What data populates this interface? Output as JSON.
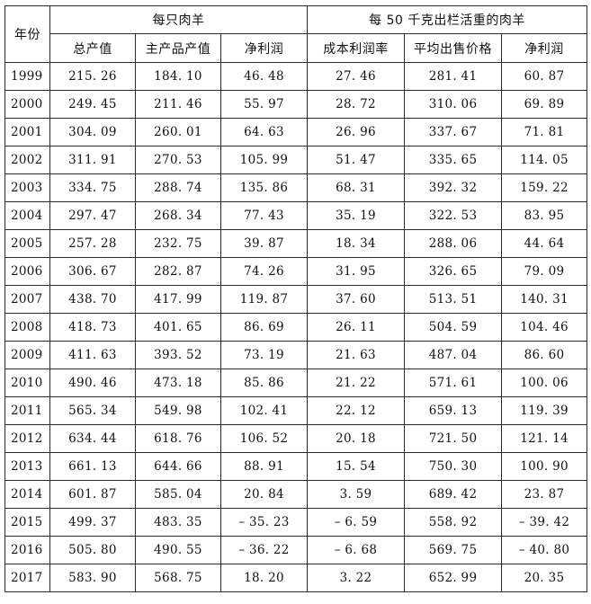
{
  "table": {
    "year_header": "年份",
    "group_headers": [
      "每只肉羊",
      "每 50 千克出栏活重的肉羊"
    ],
    "sub_headers": [
      "总产值",
      "主产品产值",
      "净利润",
      "成本利润率",
      "平均出售价格",
      "净利润"
    ],
    "rows": [
      [
        "1999",
        "215. 26",
        "184. 10",
        "46. 48",
        "27. 46",
        "281. 41",
        "60. 87"
      ],
      [
        "2000",
        "249. 45",
        "211. 46",
        "55. 97",
        "28. 72",
        "310. 06",
        "69. 89"
      ],
      [
        "2001",
        "304. 09",
        "260. 01",
        "64. 63",
        "26. 96",
        "337. 67",
        "71. 81"
      ],
      [
        "2002",
        "311. 91",
        "270. 53",
        "105. 99",
        "51. 47",
        "335. 65",
        "114. 05"
      ],
      [
        "2003",
        "334. 75",
        "288. 74",
        "135. 86",
        "68. 31",
        "392. 32",
        "159. 22"
      ],
      [
        "2004",
        "297. 47",
        "268. 34",
        "77. 43",
        "35. 19",
        "322. 53",
        "83. 95"
      ],
      [
        "2005",
        "257. 28",
        "232. 75",
        "39. 87",
        "18. 34",
        "288. 06",
        "44. 64"
      ],
      [
        "2006",
        "306. 67",
        "282. 87",
        "74. 26",
        "31. 95",
        "326. 65",
        "79. 09"
      ],
      [
        "2007",
        "438. 70",
        "417. 99",
        "119. 87",
        "37. 60",
        "513. 51",
        "140. 31"
      ],
      [
        "2008",
        "418. 73",
        "401. 65",
        "86. 69",
        "26. 11",
        "504. 59",
        "104. 46"
      ],
      [
        "2009",
        "411. 63",
        "393. 52",
        "73. 19",
        "21. 63",
        "487. 04",
        "86. 60"
      ],
      [
        "2010",
        "490. 46",
        "473. 18",
        "85. 86",
        "21. 22",
        "571. 61",
        "100. 06"
      ],
      [
        "2011",
        "565. 34",
        "549. 98",
        "102. 41",
        "22. 12",
        "659. 13",
        "119. 39"
      ],
      [
        "2012",
        "634. 44",
        "618. 76",
        "106. 52",
        "20. 18",
        "721. 50",
        "121. 14"
      ],
      [
        "2013",
        "661. 13",
        "644. 66",
        "88. 91",
        "15. 54",
        "750. 30",
        "100. 90"
      ],
      [
        "2014",
        "601. 87",
        "585. 04",
        "20. 84",
        "3. 59",
        "689. 42",
        "23. 87"
      ],
      [
        "2015",
        "499. 37",
        "483. 35",
        "– 35. 23",
        "– 6. 59",
        "558. 92",
        "– 39. 42"
      ],
      [
        "2016",
        "505. 80",
        "490. 55",
        "– 36. 22",
        "– 6. 68",
        "569. 75",
        "– 40. 80"
      ],
      [
        "2017",
        "583. 90",
        "568. 75",
        "18. 20",
        "3. 22",
        "652. 99",
        "20. 35"
      ]
    ]
  }
}
